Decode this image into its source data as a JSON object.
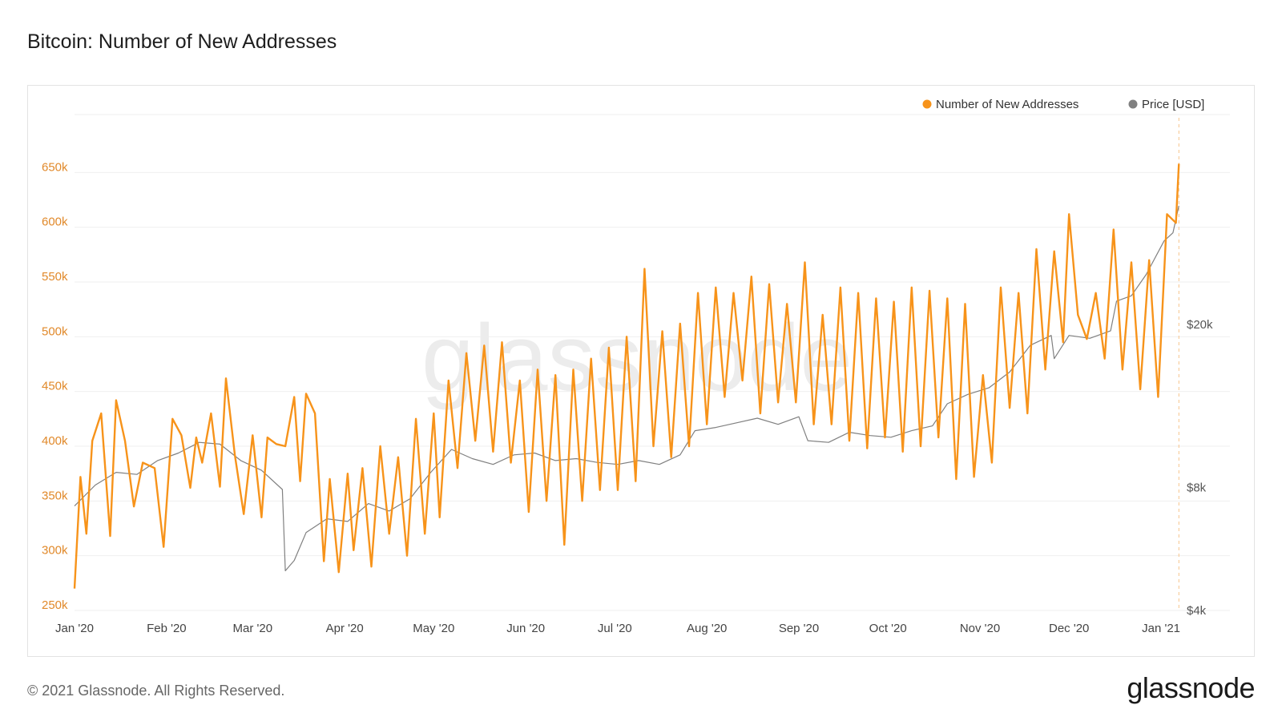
{
  "header": {
    "title": "Bitcoin: Number of New Addresses"
  },
  "footer": {
    "copyright": "© 2021 Glassnode. All Rights Reserved.",
    "brand": "glassnode"
  },
  "watermark": "glassnode",
  "colors": {
    "addresses": "#f7931a",
    "price": "#808080",
    "left_axis": "#e1892a"
  },
  "chart_data": {
    "type": "line",
    "title": "Bitcoin: Number of New Addresses",
    "legend": {
      "position": "top-right"
    },
    "x_ticks": [
      "Jan '20",
      "Feb '20",
      "Mar '20",
      "Apr '20",
      "May '20",
      "Jun '20",
      "Jul '20",
      "Aug '20",
      "Sep '20",
      "Oct '20",
      "Nov '20",
      "Dec '20",
      "Jan '21"
    ],
    "x_range": [
      "2020-01-01",
      "2021-01-08"
    ],
    "y_left": {
      "ticks": [
        "250k",
        "300k",
        "350k",
        "400k",
        "450k",
        "500k",
        "550k",
        "600k",
        "650k"
      ],
      "range": [
        250000,
        700000
      ]
    },
    "y_right": {
      "ticks": [
        "$4k",
        "$8k",
        "$20k"
      ],
      "scale": "log",
      "range": [
        4000,
        64000
      ]
    },
    "grid": true,
    "series": [
      {
        "name": "Number of New Addresses",
        "axis": "left",
        "color": "#f7931a",
        "points": [
          [
            "2020-01-01",
            270000
          ],
          [
            "2020-01-03",
            372000
          ],
          [
            "2020-01-05",
            320000
          ],
          [
            "2020-01-07",
            405000
          ],
          [
            "2020-01-10",
            430000
          ],
          [
            "2020-01-13",
            318000
          ],
          [
            "2020-01-15",
            442000
          ],
          [
            "2020-01-18",
            405000
          ],
          [
            "2020-01-21",
            345000
          ],
          [
            "2020-01-24",
            385000
          ],
          [
            "2020-01-28",
            380000
          ],
          [
            "2020-01-31",
            308000
          ],
          [
            "2020-02-03",
            425000
          ],
          [
            "2020-02-06",
            410000
          ],
          [
            "2020-02-09",
            362000
          ],
          [
            "2020-02-11",
            408000
          ],
          [
            "2020-02-13",
            385000
          ],
          [
            "2020-02-16",
            430000
          ],
          [
            "2020-02-19",
            363000
          ],
          [
            "2020-02-21",
            462000
          ],
          [
            "2020-02-24",
            392000
          ],
          [
            "2020-02-27",
            338000
          ],
          [
            "2020-03-01",
            410000
          ],
          [
            "2020-03-04",
            335000
          ],
          [
            "2020-03-06",
            408000
          ],
          [
            "2020-03-09",
            402000
          ],
          [
            "2020-03-12",
            400000
          ],
          [
            "2020-03-15",
            445000
          ],
          [
            "2020-03-17",
            368000
          ],
          [
            "2020-03-19",
            448000
          ],
          [
            "2020-03-22",
            430000
          ],
          [
            "2020-03-25",
            295000
          ],
          [
            "2020-03-27",
            370000
          ],
          [
            "2020-03-30",
            285000
          ],
          [
            "2020-04-02",
            375000
          ],
          [
            "2020-04-04",
            305000
          ],
          [
            "2020-04-07",
            380000
          ],
          [
            "2020-04-10",
            290000
          ],
          [
            "2020-04-13",
            400000
          ],
          [
            "2020-04-16",
            320000
          ],
          [
            "2020-04-19",
            390000
          ],
          [
            "2020-04-22",
            300000
          ],
          [
            "2020-04-25",
            425000
          ],
          [
            "2020-04-28",
            320000
          ],
          [
            "2020-05-01",
            430000
          ],
          [
            "2020-05-03",
            335000
          ],
          [
            "2020-05-06",
            460000
          ],
          [
            "2020-05-09",
            380000
          ],
          [
            "2020-05-12",
            485000
          ],
          [
            "2020-05-15",
            405000
          ],
          [
            "2020-05-18",
            492000
          ],
          [
            "2020-05-21",
            395000
          ],
          [
            "2020-05-24",
            495000
          ],
          [
            "2020-05-27",
            385000
          ],
          [
            "2020-05-30",
            460000
          ],
          [
            "2020-06-02",
            340000
          ],
          [
            "2020-06-05",
            470000
          ],
          [
            "2020-06-08",
            350000
          ],
          [
            "2020-06-11",
            465000
          ],
          [
            "2020-06-14",
            310000
          ],
          [
            "2020-06-17",
            470000
          ],
          [
            "2020-06-20",
            350000
          ],
          [
            "2020-06-23",
            480000
          ],
          [
            "2020-06-26",
            360000
          ],
          [
            "2020-06-29",
            490000
          ],
          [
            "2020-07-02",
            360000
          ],
          [
            "2020-07-05",
            500000
          ],
          [
            "2020-07-08",
            368000
          ],
          [
            "2020-07-11",
            562000
          ],
          [
            "2020-07-14",
            400000
          ],
          [
            "2020-07-17",
            505000
          ],
          [
            "2020-07-20",
            390000
          ],
          [
            "2020-07-23",
            512000
          ],
          [
            "2020-07-26",
            400000
          ],
          [
            "2020-07-29",
            540000
          ],
          [
            "2020-08-01",
            420000
          ],
          [
            "2020-08-04",
            545000
          ],
          [
            "2020-08-07",
            445000
          ],
          [
            "2020-08-10",
            540000
          ],
          [
            "2020-08-13",
            460000
          ],
          [
            "2020-08-16",
            555000
          ],
          [
            "2020-08-19",
            430000
          ],
          [
            "2020-08-22",
            548000
          ],
          [
            "2020-08-25",
            440000
          ],
          [
            "2020-08-28",
            530000
          ],
          [
            "2020-08-31",
            440000
          ],
          [
            "2020-09-03",
            568000
          ],
          [
            "2020-09-06",
            420000
          ],
          [
            "2020-09-09",
            520000
          ],
          [
            "2020-09-12",
            420000
          ],
          [
            "2020-09-15",
            545000
          ],
          [
            "2020-09-18",
            405000
          ],
          [
            "2020-09-21",
            540000
          ],
          [
            "2020-09-24",
            398000
          ],
          [
            "2020-09-27",
            535000
          ],
          [
            "2020-09-30",
            408000
          ],
          [
            "2020-10-03",
            532000
          ],
          [
            "2020-10-06",
            395000
          ],
          [
            "2020-10-09",
            545000
          ],
          [
            "2020-10-12",
            400000
          ],
          [
            "2020-10-15",
            542000
          ],
          [
            "2020-10-18",
            408000
          ],
          [
            "2020-10-21",
            535000
          ],
          [
            "2020-10-24",
            370000
          ],
          [
            "2020-10-27",
            530000
          ],
          [
            "2020-10-30",
            372000
          ],
          [
            "2020-11-02",
            465000
          ],
          [
            "2020-11-05",
            385000
          ],
          [
            "2020-11-08",
            545000
          ],
          [
            "2020-11-11",
            435000
          ],
          [
            "2020-11-14",
            540000
          ],
          [
            "2020-11-17",
            430000
          ],
          [
            "2020-11-20",
            580000
          ],
          [
            "2020-11-23",
            470000
          ],
          [
            "2020-11-26",
            578000
          ],
          [
            "2020-11-29",
            495000
          ],
          [
            "2020-12-01",
            612000
          ],
          [
            "2020-12-04",
            520000
          ],
          [
            "2020-12-07",
            498000
          ],
          [
            "2020-12-10",
            540000
          ],
          [
            "2020-12-13",
            480000
          ],
          [
            "2020-12-16",
            598000
          ],
          [
            "2020-12-19",
            470000
          ],
          [
            "2020-12-22",
            568000
          ],
          [
            "2020-12-25",
            452000
          ],
          [
            "2020-12-28",
            570000
          ],
          [
            "2020-12-31",
            445000
          ],
          [
            "2021-01-03",
            612000
          ],
          [
            "2021-01-06",
            604000
          ],
          [
            "2021-01-07",
            658000
          ]
        ]
      },
      {
        "name": "Price [USD]",
        "axis": "right",
        "color": "#808080",
        "points": [
          [
            "2020-01-01",
            7200
          ],
          [
            "2020-01-08",
            8100
          ],
          [
            "2020-01-15",
            8700
          ],
          [
            "2020-01-22",
            8600
          ],
          [
            "2020-01-29",
            9300
          ],
          [
            "2020-02-05",
            9700
          ],
          [
            "2020-02-12",
            10300
          ],
          [
            "2020-02-19",
            10200
          ],
          [
            "2020-02-26",
            9300
          ],
          [
            "2020-03-04",
            8800
          ],
          [
            "2020-03-11",
            7900
          ],
          [
            "2020-03-12",
            5000
          ],
          [
            "2020-03-15",
            5300
          ],
          [
            "2020-03-19",
            6200
          ],
          [
            "2020-03-26",
            6700
          ],
          [
            "2020-04-02",
            6600
          ],
          [
            "2020-04-09",
            7300
          ],
          [
            "2020-04-16",
            7000
          ],
          [
            "2020-04-23",
            7500
          ],
          [
            "2020-04-30",
            8700
          ],
          [
            "2020-05-07",
            9900
          ],
          [
            "2020-05-14",
            9400
          ],
          [
            "2020-05-21",
            9100
          ],
          [
            "2020-05-28",
            9600
          ],
          [
            "2020-06-04",
            9700
          ],
          [
            "2020-06-11",
            9300
          ],
          [
            "2020-06-18",
            9400
          ],
          [
            "2020-06-25",
            9200
          ],
          [
            "2020-07-02",
            9100
          ],
          [
            "2020-07-09",
            9300
          ],
          [
            "2020-07-16",
            9100
          ],
          [
            "2020-07-23",
            9600
          ],
          [
            "2020-07-28",
            11000
          ],
          [
            "2020-08-04",
            11200
          ],
          [
            "2020-08-11",
            11500
          ],
          [
            "2020-08-18",
            11800
          ],
          [
            "2020-08-25",
            11400
          ],
          [
            "2020-09-01",
            11900
          ],
          [
            "2020-09-04",
            10400
          ],
          [
            "2020-09-11",
            10300
          ],
          [
            "2020-09-18",
            10900
          ],
          [
            "2020-09-25",
            10700
          ],
          [
            "2020-10-02",
            10600
          ],
          [
            "2020-10-09",
            11000
          ],
          [
            "2020-10-16",
            11300
          ],
          [
            "2020-10-21",
            12800
          ],
          [
            "2020-10-28",
            13500
          ],
          [
            "2020-11-04",
            14000
          ],
          [
            "2020-11-11",
            15300
          ],
          [
            "2020-11-18",
            17800
          ],
          [
            "2020-11-25",
            18800
          ],
          [
            "2020-11-26",
            16500
          ],
          [
            "2020-12-01",
            18800
          ],
          [
            "2020-12-08",
            18500
          ],
          [
            "2020-12-15",
            19300
          ],
          [
            "2020-12-17",
            22800
          ],
          [
            "2020-12-22",
            23500
          ],
          [
            "2020-12-27",
            26500
          ],
          [
            "2021-01-02",
            32000
          ],
          [
            "2021-01-05",
            33500
          ],
          [
            "2021-01-07",
            39000
          ]
        ]
      }
    ]
  }
}
